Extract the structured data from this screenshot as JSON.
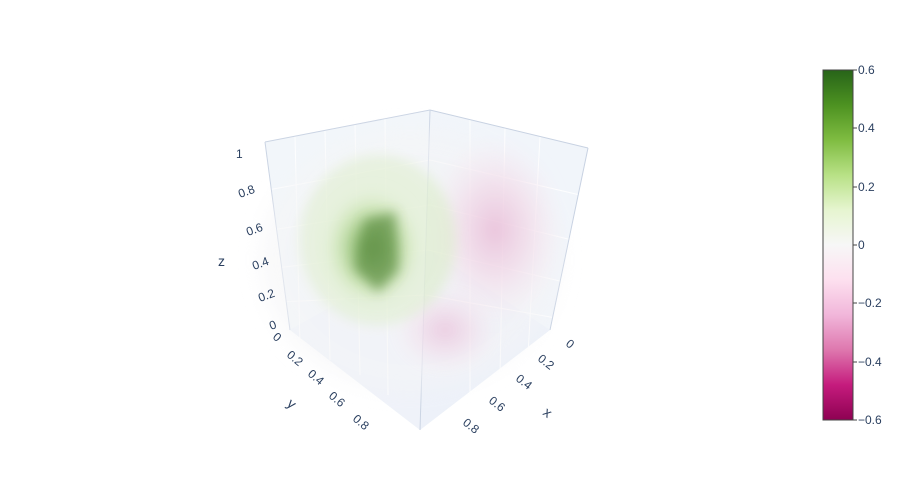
{
  "chart_data": {
    "type": "volume",
    "title": "",
    "axes": {
      "x": {
        "label": "x",
        "ticks": [
          "0",
          "0.2",
          "0.4",
          "0.6",
          "0.8"
        ]
      },
      "y": {
        "label": "y",
        "ticks": [
          "0",
          "0.2",
          "0.4",
          "0.6",
          "0.8"
        ]
      },
      "z": {
        "label": "z",
        "ticks": [
          "0",
          "0.2",
          "0.4",
          "0.6",
          "0.8",
          "1"
        ]
      }
    },
    "colorbar": {
      "colorscale": "PiYG",
      "range": [
        -0.6,
        0.6
      ],
      "ticks": [
        "0.6",
        "0.4",
        "0.2",
        "0",
        "−0.2",
        "−0.4",
        "−0.6"
      ],
      "colors": {
        "low": "#8e0152",
        "mid": "#f7f7f7",
        "high": "#276419"
      }
    },
    "volume_features": [
      {
        "name": "green-blob",
        "value": 0.55
      },
      {
        "name": "pink-region",
        "value": -0.15
      }
    ]
  }
}
